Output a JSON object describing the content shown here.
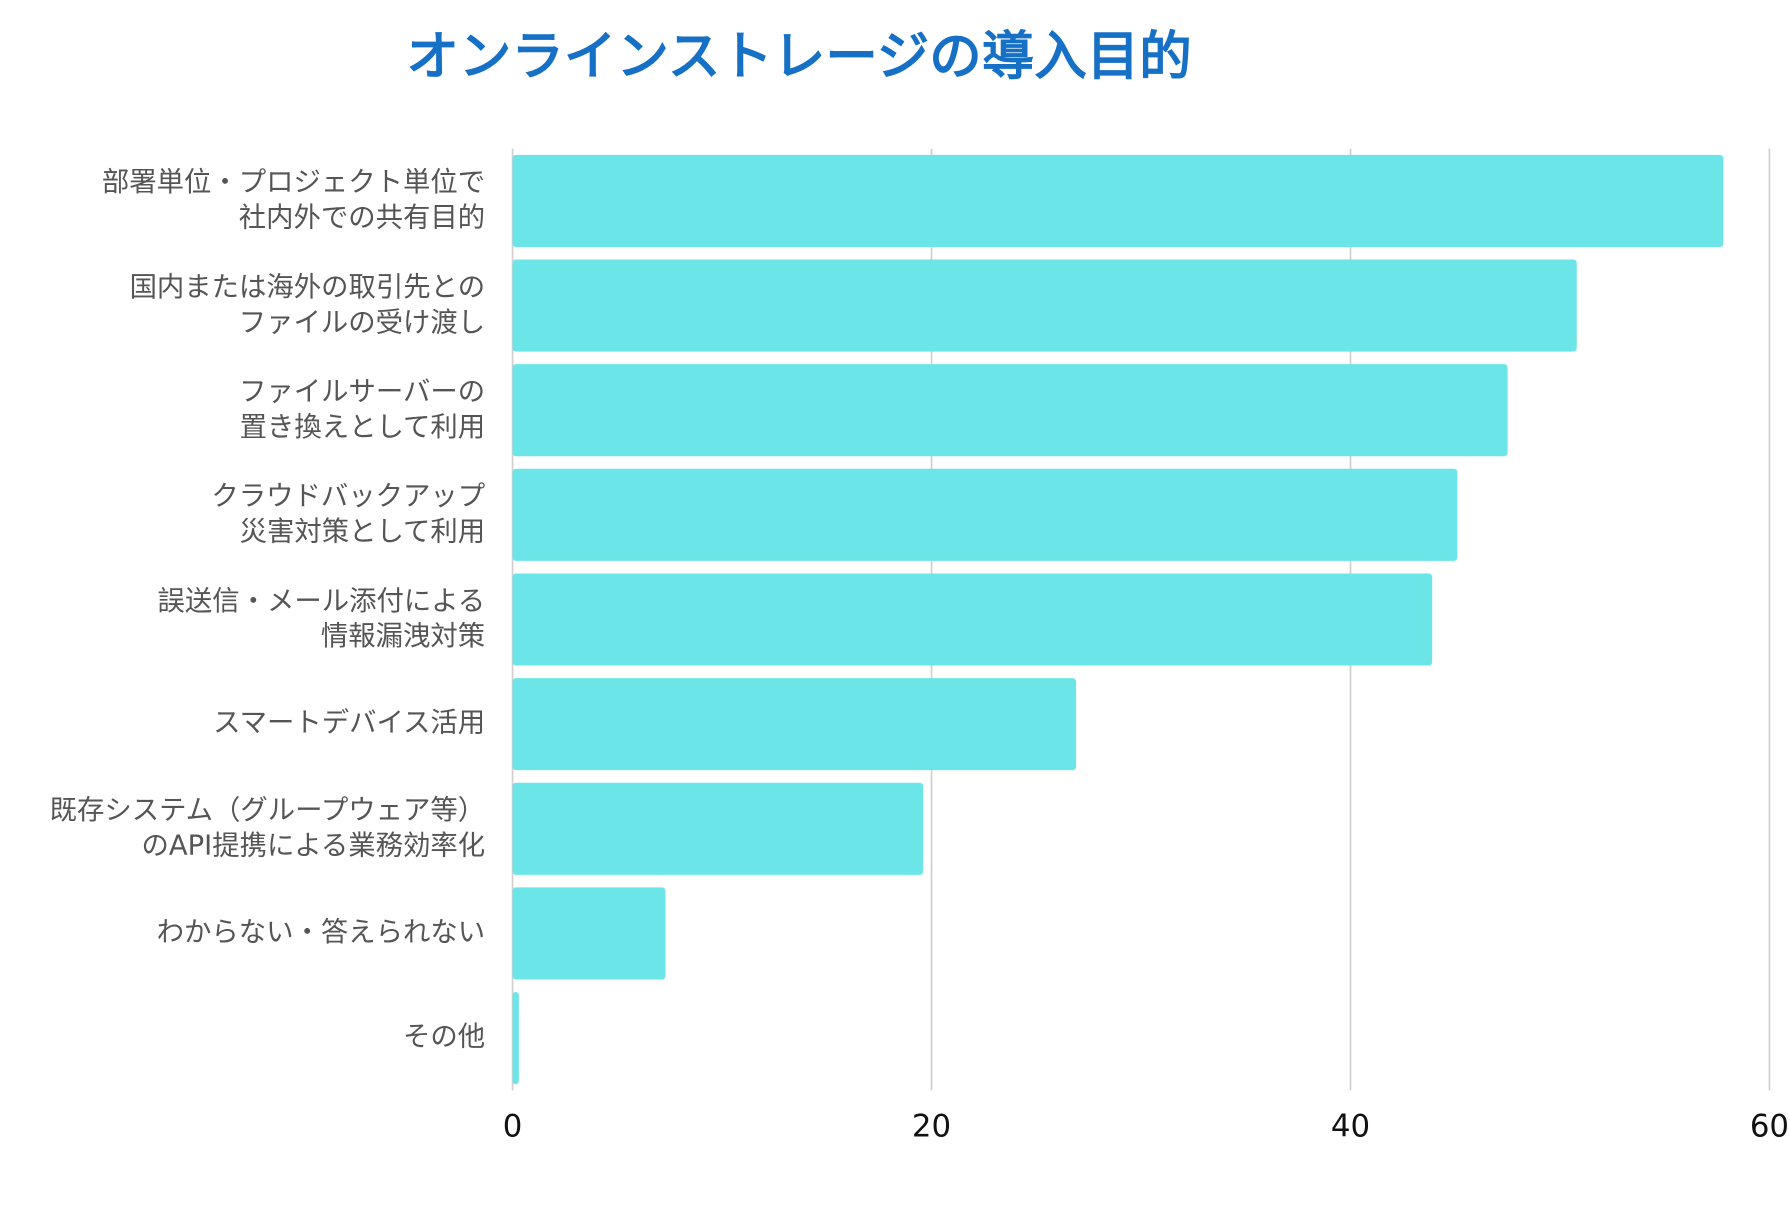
{
  "chart_data": {
    "type": "barh",
    "title": "オンラインストレージの導入目的",
    "categories": [
      "部署単位・プロジェクト単位で\n社内外での共有目的",
      "国内または海外の取引先との\nファイルの受け渡し",
      "ファイルサーバーの\n置き換えとして利用",
      "クラウドバックアップ\n災害対策として利用",
      "誤送信・メール添付による\n情報漏洩対策",
      "スマートデバイス活用",
      "既存システム（グループウェア等）\nのAPI提携による業務効率化",
      "わからない・答えられない",
      "その他"
    ],
    "values": [
      57.8,
      50.8,
      47.5,
      45.1,
      43.9,
      26.9,
      19.6,
      7.3,
      0.3
    ],
    "color": "#6ce5e8",
    "xlim": [
      0,
      60
    ],
    "xticks": [
      0,
      20,
      40,
      60
    ],
    "grid": true
  }
}
